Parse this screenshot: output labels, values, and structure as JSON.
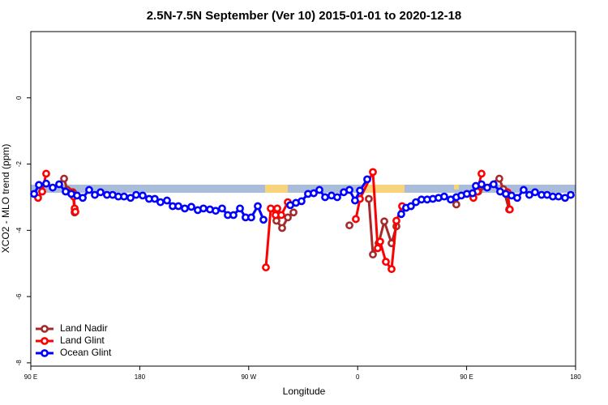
{
  "chart_data": {
    "type": "line",
    "title": "2.5N-7.5N September (Ver 10)   2015-01-01 to 2020-12-18",
    "xlabel": "Longitude",
    "ylabel": "XCO2 - MLO trend (ppm)",
    "xlim": [
      90,
      540
    ],
    "ylim": [
      -8.1,
      2
    ],
    "xticks": [
      {
        "value": 90,
        "label": "90 E"
      },
      {
        "value": 180,
        "label": "180"
      },
      {
        "value": 270,
        "label": "90 W"
      },
      {
        "value": 360,
        "label": "0"
      },
      {
        "value": 450,
        "label": "90 E"
      },
      {
        "value": 540,
        "label": "180"
      }
    ],
    "yticks": [
      0,
      -2,
      -4,
      -6,
      -8
    ],
    "legend": "lower left",
    "series": [
      {
        "name": "Land Nadir",
        "color": "#a52a2a",
        "x": [
          117.5,
          120.1,
          124.8,
          126.2,
          null,
          292.9,
          297.6,
          302.3,
          307.0,
          null,
          353.2,
          null,
          369.2,
          372.6,
          377.3,
          382.0,
          388.0,
          392.0,
          null,
          441.5,
          null,
          459.6,
          477.0,
          480.4,
          485.1
        ],
        "values": [
          -2.44,
          -2.78,
          -2.85,
          -3.46,
          null,
          -3.71,
          -3.93,
          -3.61,
          -3.46,
          null,
          -3.85,
          null,
          -3.05,
          -4.73,
          -4.39,
          -3.73,
          -4.39,
          -3.88,
          null,
          -3.22,
          null,
          -2.83,
          -2.44,
          -2.76,
          -3.37
        ]
      },
      {
        "name": "Land Glint",
        "color": "#ff0000",
        "x": [
          96.0,
          99.4,
          102.7,
          null,
          123.5,
          125.5,
          126.2,
          126.8,
          null,
          284.2,
          288.2,
          292.2,
          293.6,
          296.9,
          302.3,
          null,
          358.5,
          361.9,
          372.6,
          376.6,
          378.6,
          383.3,
          388.0,
          392.0,
          396.7,
          null,
          455.6,
          458.9,
          462.3,
          null,
          483.7,
          485.7
        ],
        "values": [
          -3.02,
          -2.83,
          -2.29,
          null,
          -2.85,
          -2.98,
          -3.34,
          -3.44,
          null,
          -5.12,
          -3.34,
          -3.54,
          -3.34,
          -3.54,
          -3.15,
          null,
          -3.66,
          -3.05,
          -2.24,
          -4.54,
          -4.34,
          -4.95,
          -5.17,
          -3.71,
          -3.27,
          null,
          -3.02,
          -2.83,
          -2.29,
          null,
          -2.85,
          -3.37
        ]
      },
      {
        "name": "Ocean Glint",
        "color": "#0000ff",
        "x": [
          92.7,
          96.7,
          102.7,
          108.1,
          113.4,
          118.8,
          123.5,
          128.2,
          132.9,
          138.2,
          142.9,
          147.6,
          152.9,
          157.6,
          162.3,
          167.0,
          172.4,
          177.0,
          182.4,
          187.7,
          192.4,
          197.1,
          202.5,
          207.2,
          211.9,
          217.2,
          222.6,
          227.9,
          232.6,
          238.0,
          242.7,
          248.0,
          252.7,
          257.4,
          262.8,
          267.4,
          272.1,
          277.5,
          282.2,
          null,
          304.3,
          309.0,
          313.6,
          319.0,
          323.7,
          328.4,
          333.1,
          338.4,
          343.1,
          348.5,
          353.2,
          357.8,
          361.9,
          367.9,
          null,
          396.0,
          400.0,
          404.0,
          408.1,
          412.7,
          417.4,
          422.1,
          426.8,
          431.5,
          436.9,
          441.5,
          445.6,
          450.2,
          454.9,
          457.6,
          462.3,
          467.0,
          472.3,
          477.7,
          482.4,
          487.1,
          491.8,
          497.1,
          501.8,
          506.5,
          511.9,
          516.5,
          521.2,
          525.9,
          531.3,
          536.0
        ],
        "values": [
          -2.9,
          -2.63,
          -2.59,
          -2.71,
          -2.61,
          -2.83,
          -2.9,
          -2.95,
          -3.02,
          -2.78,
          -2.93,
          -2.85,
          -2.93,
          -2.93,
          -2.98,
          -2.98,
          -3.02,
          -2.93,
          -2.95,
          -3.05,
          -3.05,
          -3.15,
          -3.1,
          -3.27,
          -3.27,
          -3.34,
          -3.29,
          -3.39,
          -3.34,
          -3.37,
          -3.41,
          -3.34,
          -3.54,
          -3.54,
          -3.34,
          -3.61,
          -3.61,
          -3.27,
          -3.68,
          null,
          -3.24,
          -3.17,
          -3.12,
          -2.9,
          -2.88,
          -2.78,
          -3.0,
          -2.95,
          -3.0,
          -2.85,
          -2.78,
          -3.1,
          -2.8,
          -2.46,
          null,
          -3.51,
          -3.32,
          -3.27,
          -3.15,
          -3.07,
          -3.07,
          -3.05,
          -3.02,
          -2.98,
          -3.07,
          -3.0,
          -2.95,
          -2.9,
          -2.88,
          -2.66,
          -2.61,
          -2.71,
          -2.61,
          -2.83,
          -2.9,
          -2.95,
          -3.02,
          -2.78,
          -2.93,
          -2.85,
          -2.93,
          -2.93,
          -2.98,
          -2.98,
          -3.02,
          -2.93
        ]
      }
    ]
  }
}
